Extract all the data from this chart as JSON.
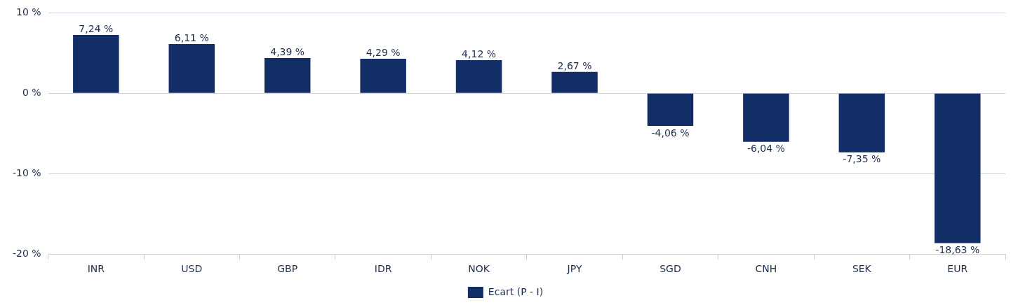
{
  "chart_data": {
    "type": "bar",
    "categories": [
      "INR",
      "USD",
      "GBP",
      "IDR",
      "NOK",
      "JPY",
      "SGD",
      "CNH",
      "SEK",
      "EUR"
    ],
    "series": [
      {
        "name": "Ecart (P - I)",
        "color": "#132d66",
        "values": [
          7.24,
          6.11,
          4.39,
          4.29,
          4.12,
          2.67,
          -4.06,
          -6.04,
          -7.35,
          -18.63
        ],
        "value_labels": [
          "7,24 %",
          "6,11 %",
          "4,39 %",
          "4,29 %",
          "4,12 %",
          "2,67 %",
          "-4,06 %",
          "-6,04 %",
          "-7,35 %",
          "-18,63 %"
        ]
      }
    ],
    "ylim": [
      -20,
      10
    ],
    "yticks": [
      {
        "value": -20,
        "label": "-20 %"
      },
      {
        "value": -10,
        "label": "-10 %"
      },
      {
        "value": 0,
        "label": "0 %"
      },
      {
        "value": 10,
        "label": "10 %"
      }
    ],
    "grid": "y",
    "legend": "bottom"
  }
}
